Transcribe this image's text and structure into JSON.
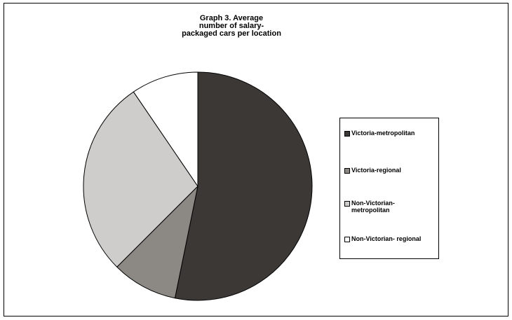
{
  "chart_data": {
    "type": "pie",
    "title": "Graph 3. Average\nnumber of salary-\npackaged cars per location",
    "categories": [
      "Victoria-metropolitan",
      "Victoria-regional",
      "Non-Victorian-\nmetropolitan",
      "Non-Victorian- regional"
    ],
    "values": [
      53.2,
      9.3,
      28.0,
      9.5
    ],
    "colors": [
      "#3b3836",
      "#8c8883",
      "#cfcdcb",
      "#ffffff"
    ],
    "legend_position": "right"
  }
}
